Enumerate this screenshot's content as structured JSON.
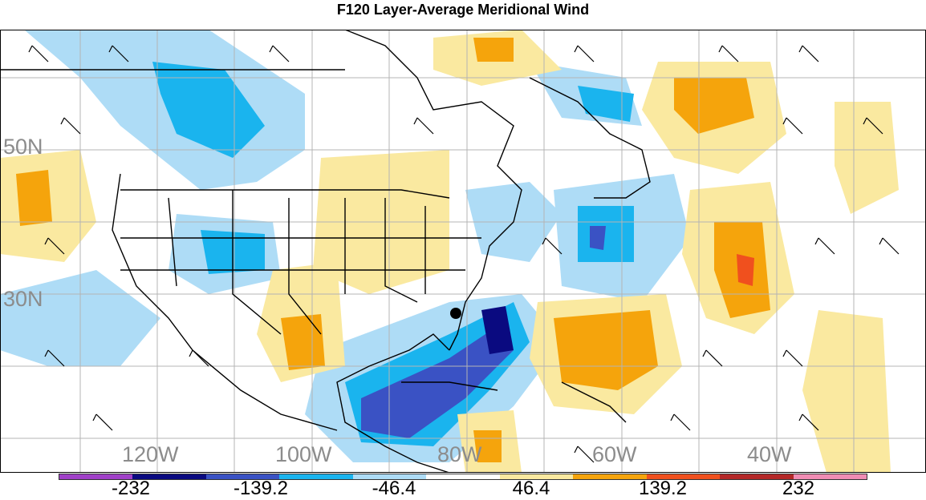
{
  "title": "F120 Layer-Average Meridional Wind",
  "lat_labels": [
    "50N",
    "30N"
  ],
  "lon_labels": [
    "120W",
    "100W",
    "80W",
    "60W",
    "40W"
  ],
  "colorbar": {
    "colors": [
      "#a040c8",
      "#0a0a80",
      "#3a52c4",
      "#1ab4ee",
      "#aedcf6",
      "#ffffff",
      "#fae9a0",
      "#f5a40c",
      "#f0501e",
      "#b42828",
      "#f08cb4"
    ],
    "labels": [
      "-232",
      "-139.2",
      "-46.4",
      "46.4",
      "139.2",
      "232"
    ]
  },
  "marker": "storm-center-dot"
}
